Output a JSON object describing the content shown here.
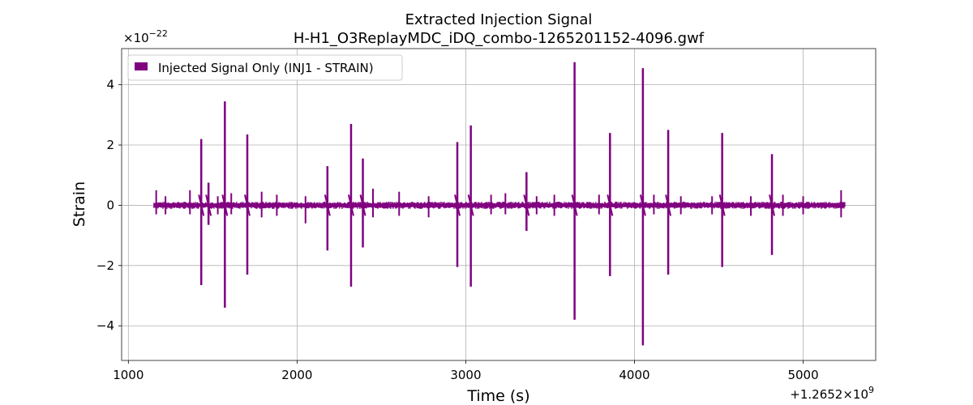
{
  "chart_data": {
    "type": "line",
    "title": "Extracted Injection Signal",
    "subtitle": "H-H1_O3ReplayMDC_iDQ_combo-1265201152-4096.gwf",
    "xlabel": "Time (s)",
    "ylabel": "Strain",
    "x_offset_label": "+1.2652×10",
    "x_offset_exp": "9",
    "y_scale_label": "×10",
    "y_scale_exp": "−22",
    "xlim": [
      960,
      5430
    ],
    "ylim": [
      -5.15,
      5.2
    ],
    "x_ticks": [
      1000,
      2000,
      3000,
      4000,
      5000
    ],
    "x_tick_labels": [
      "1000",
      "2000",
      "3000",
      "4000",
      "5000"
    ],
    "y_ticks": [
      -4,
      -2,
      0,
      2,
      4
    ],
    "y_tick_labels": [
      "−4",
      "−2",
      "0",
      "2",
      "4"
    ],
    "grid": true,
    "legend_position": "top-left",
    "series": [
      {
        "name": "Injected Signal Only (INJ1 - STRAIN)",
        "color": "#800080",
        "x_range": [
          1152,
          5248
        ],
        "noise_band": [
          -0.12,
          0.12
        ],
        "spikes": [
          {
            "x": 1432,
            "max": 2.2,
            "min": -2.65
          },
          {
            "x": 1475,
            "max": 0.75,
            "min": -0.65
          },
          {
            "x": 1572,
            "max": 3.45,
            "min": -3.4
          },
          {
            "x": 1705,
            "max": 2.35,
            "min": -2.3
          },
          {
            "x": 2180,
            "max": 1.3,
            "min": -1.5
          },
          {
            "x": 2320,
            "max": 2.7,
            "min": -2.7
          },
          {
            "x": 2390,
            "max": 1.55,
            "min": -1.4
          },
          {
            "x": 2950,
            "max": 2.1,
            "min": -2.05
          },
          {
            "x": 3030,
            "max": 2.65,
            "min": -2.7
          },
          {
            "x": 3360,
            "max": 1.1,
            "min": -0.85
          },
          {
            "x": 3645,
            "max": 4.75,
            "min": -3.8
          },
          {
            "x": 3855,
            "max": 2.4,
            "min": -2.35
          },
          {
            "x": 4050,
            "max": 4.55,
            "min": -4.65
          },
          {
            "x": 4200,
            "max": 2.5,
            "min": -2.3
          },
          {
            "x": 4520,
            "max": 2.4,
            "min": -2.05
          },
          {
            "x": 4815,
            "max": 1.7,
            "min": -1.65
          }
        ],
        "small_bursts": [
          {
            "x": 1165,
            "max": 0.5,
            "min": -0.3
          },
          {
            "x": 1220,
            "max": 0.3,
            "min": -0.3
          },
          {
            "x": 1365,
            "max": 0.5,
            "min": -0.3
          },
          {
            "x": 1530,
            "max": 0.3,
            "min": -0.3
          },
          {
            "x": 1610,
            "max": 0.4,
            "min": -0.3
          },
          {
            "x": 1790,
            "max": 0.45,
            "min": -0.4
          },
          {
            "x": 1880,
            "max": 0.35,
            "min": -0.35
          },
          {
            "x": 2050,
            "max": 0.3,
            "min": -0.6
          },
          {
            "x": 2450,
            "max": 0.55,
            "min": -0.4
          },
          {
            "x": 2605,
            "max": 0.45,
            "min": -0.35
          },
          {
            "x": 2780,
            "max": 0.3,
            "min": -0.4
          },
          {
            "x": 3150,
            "max": 0.35,
            "min": -0.3
          },
          {
            "x": 3235,
            "max": 0.4,
            "min": -0.3
          },
          {
            "x": 3420,
            "max": 0.3,
            "min": -0.3
          },
          {
            "x": 3525,
            "max": 0.35,
            "min": -0.35
          },
          {
            "x": 3790,
            "max": 0.35,
            "min": -0.3
          },
          {
            "x": 4115,
            "max": 0.35,
            "min": -0.3
          },
          {
            "x": 4275,
            "max": 0.3,
            "min": -0.3
          },
          {
            "x": 4460,
            "max": 0.3,
            "min": -0.3
          },
          {
            "x": 4690,
            "max": 0.3,
            "min": -0.35
          },
          {
            "x": 4880,
            "max": 0.35,
            "min": -0.35
          },
          {
            "x": 5000,
            "max": 0.3,
            "min": -0.3
          },
          {
            "x": 5225,
            "max": 0.5,
            "min": -0.4
          }
        ]
      }
    ]
  }
}
